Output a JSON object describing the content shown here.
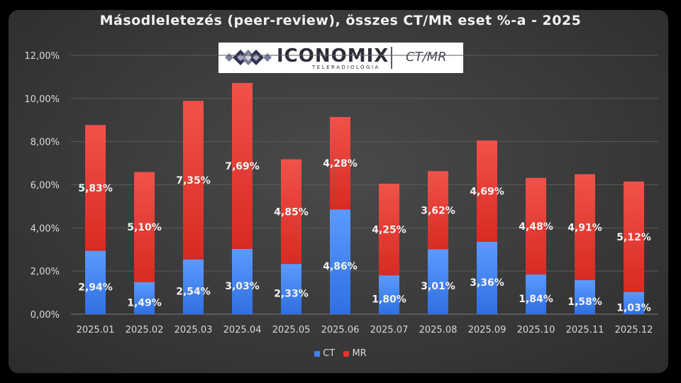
{
  "colors": {
    "ct": "#3b82f6",
    "mr": "#e8322a",
    "text": "#d9d9d9",
    "grid": "#5a5a5a"
  },
  "logo": {
    "name": "ICONOMIX",
    "subtitle": "TELERADIOLÓGIA",
    "tag": "CT/MR",
    "icon": "diamond-logo-icon"
  },
  "chart_data": {
    "type": "bar",
    "stacked": true,
    "title": "Másodleletezés (peer-review), összes CT/MR eset %-a - 2025",
    "xlabel": "",
    "ylabel": "",
    "ylim": [
      0,
      12
    ],
    "yticks": [
      0,
      2,
      4,
      6,
      8,
      10,
      12
    ],
    "ytick_labels": [
      "0,00%",
      "2,00%",
      "4,00%",
      "6,00%",
      "8,00%",
      "10,00%",
      "12,00%"
    ],
    "grid": true,
    "legend_position": "bottom",
    "categories": [
      "2025.01",
      "2025.02",
      "2025.03",
      "2025.04",
      "2025.05",
      "2025.06",
      "2025.07",
      "2025.08",
      "2025.09",
      "2025.10",
      "2025.11",
      "2025.12"
    ],
    "series": [
      {
        "name": "CT",
        "values": [
          2.94,
          1.49,
          2.54,
          3.03,
          2.33,
          4.86,
          1.8,
          3.01,
          3.36,
          1.84,
          1.58,
          1.03
        ],
        "labels": [
          "2,94%",
          "1,49%",
          "2,54%",
          "3,03%",
          "2,33%",
          "4,86%",
          "1,80%",
          "3,01%",
          "3,36%",
          "1,84%",
          "1,58%",
          "1,03%"
        ]
      },
      {
        "name": "MR",
        "values": [
          5.83,
          5.1,
          7.35,
          7.69,
          4.85,
          4.28,
          4.25,
          3.62,
          4.69,
          4.48,
          4.91,
          5.12
        ],
        "labels": [
          "5,83%",
          "5,10%",
          "7,35%",
          "7,69%",
          "4,85%",
          "4,28%",
          "4,25%",
          "3,62%",
          "4,69%",
          "4,48%",
          "4,91%",
          "5,12%"
        ]
      }
    ]
  }
}
